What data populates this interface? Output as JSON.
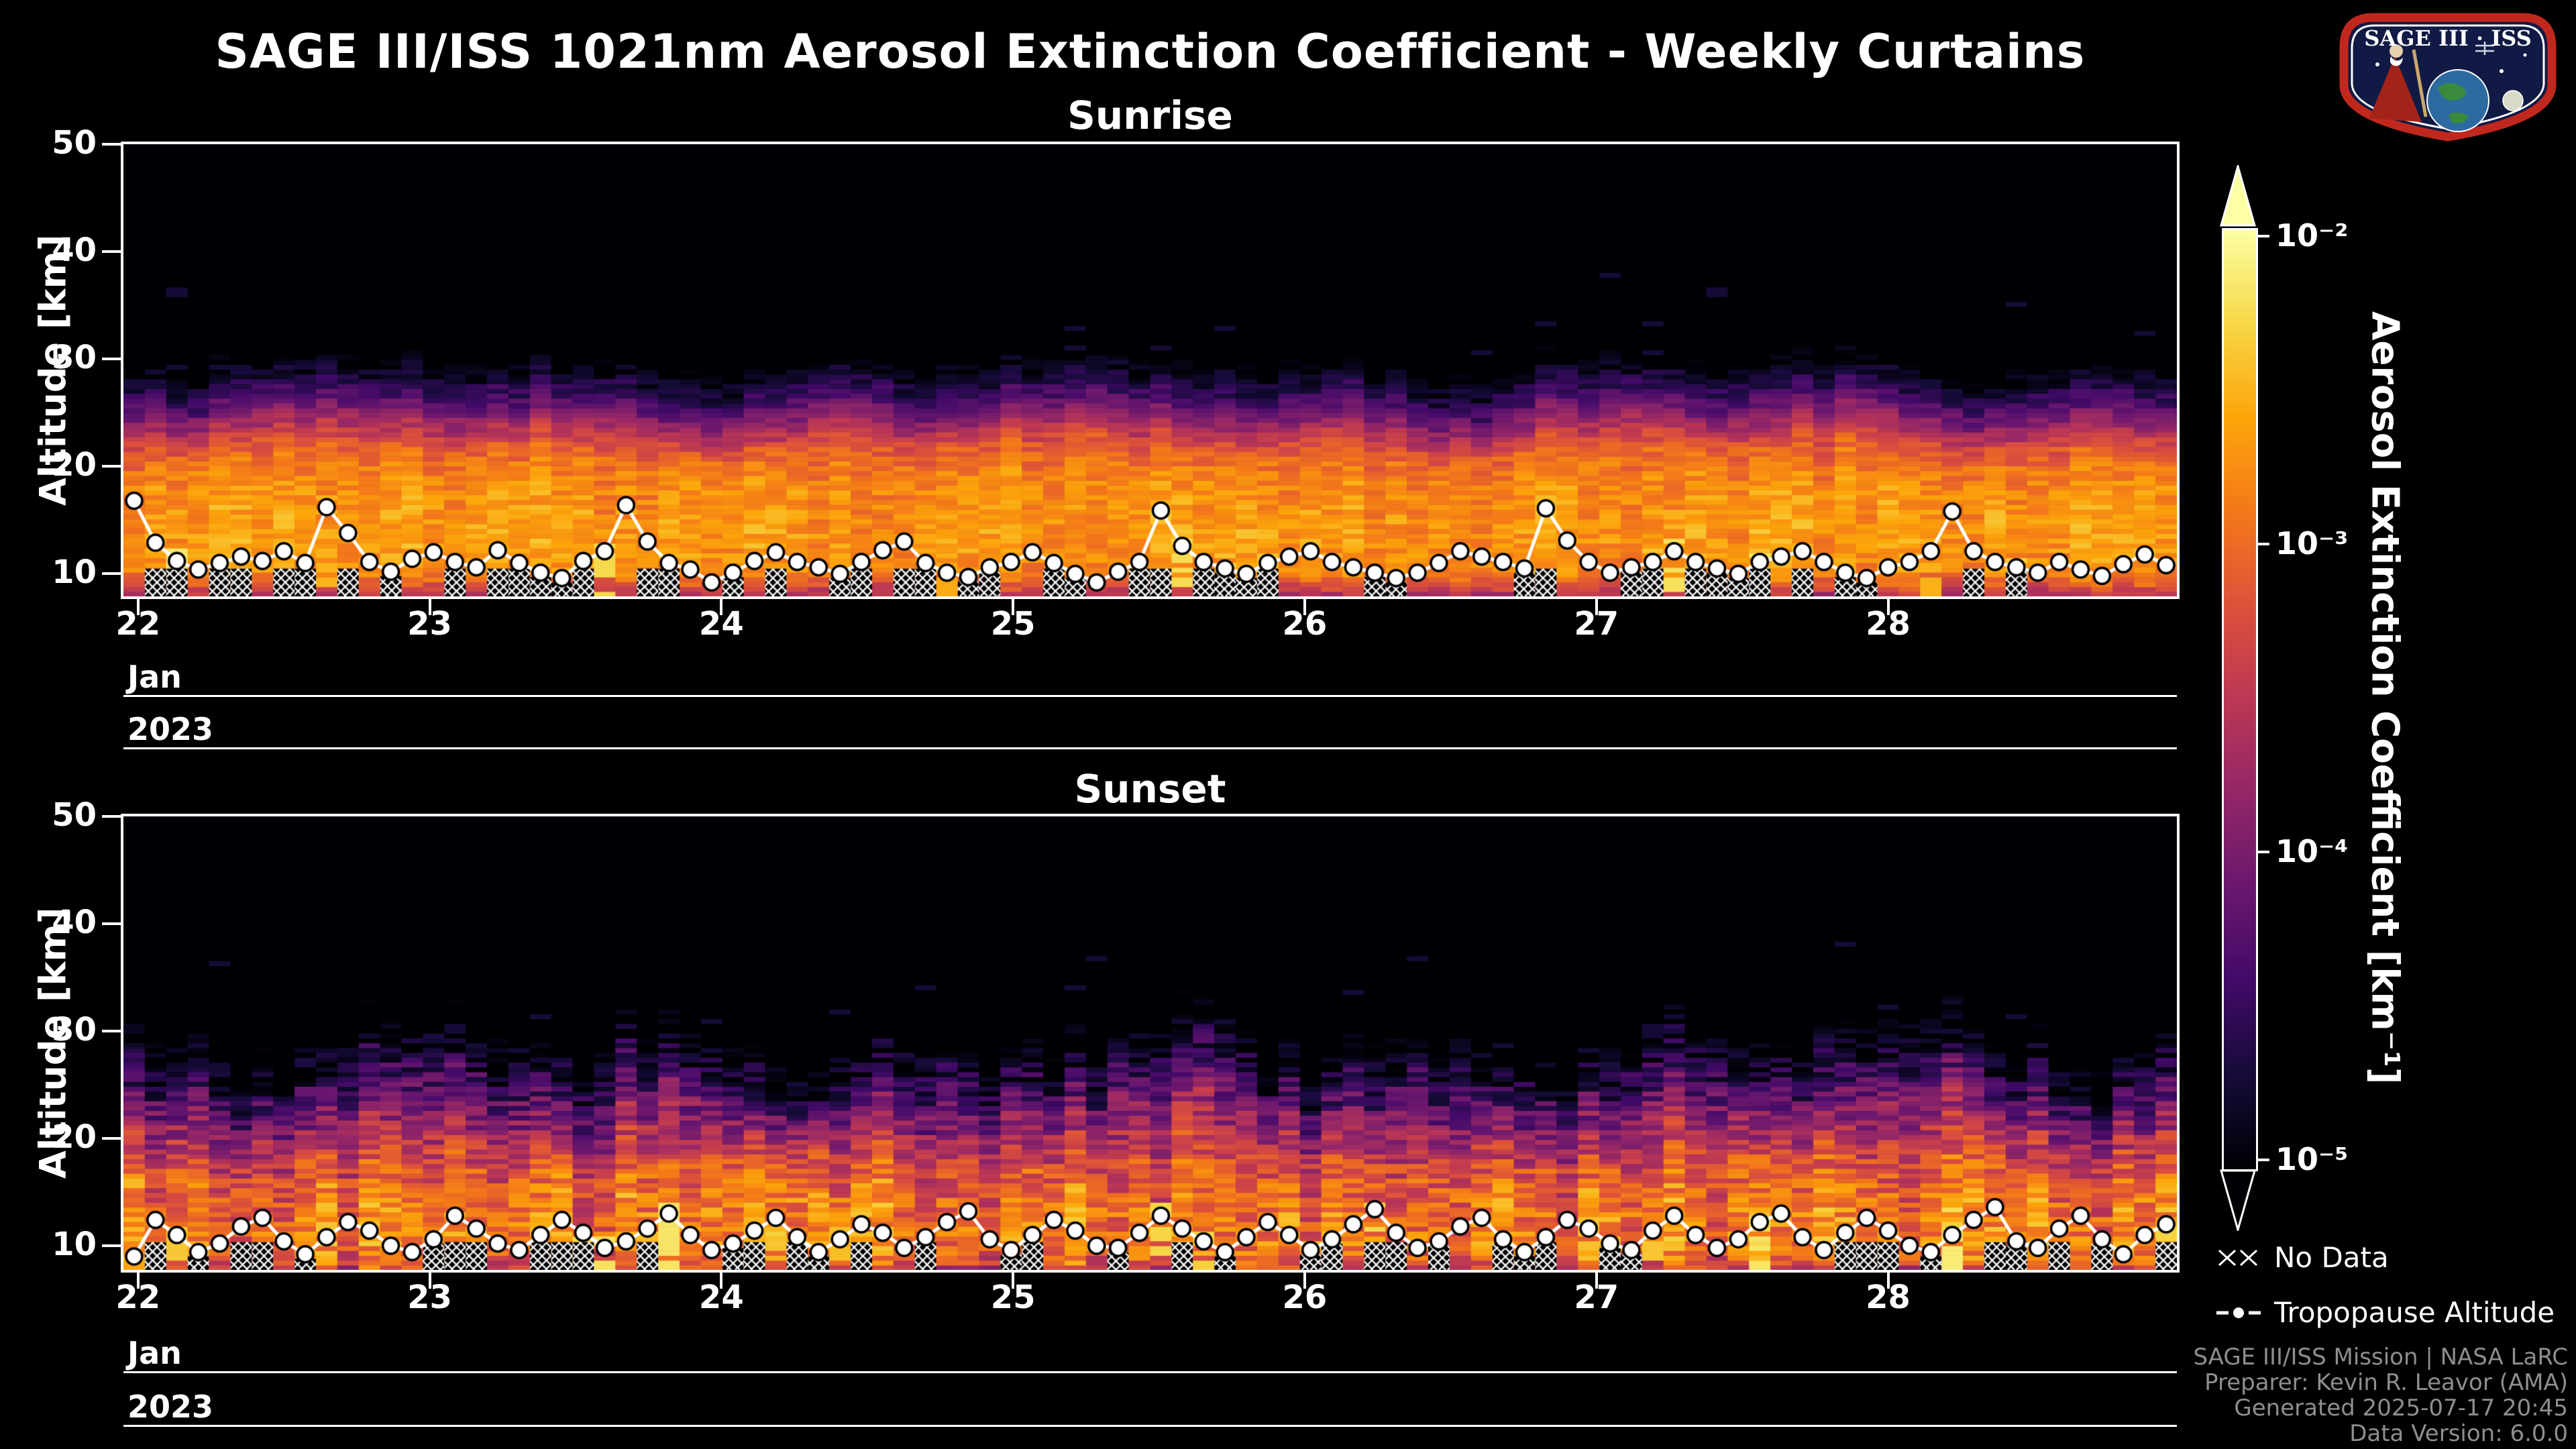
{
  "page": {
    "title": "SAGE III/ISS 1021nm Aerosol Extinction Coefficient - Weekly Curtains",
    "background": "#000000"
  },
  "logo": {
    "title": "SAGE III · ISS"
  },
  "legend": {
    "no_data": "No Data",
    "tropopause": "Tropopause Altitude"
  },
  "credits": {
    "lines": [
      "SAGE III/ISS Mission | NASA LaRC",
      "Preparer: Kevin R. Leavor (AMA)",
      "Generated 2025-07-17 20:45",
      "Data Version: 6.0.0"
    ]
  },
  "chart_data": {
    "type": "heatmap",
    "title": "SAGE III/ISS 1021nm Aerosol Extinction Coefficient - Weekly Curtains",
    "x_axis": {
      "tick_labels": [
        "22",
        "23",
        "24",
        "25",
        "26",
        "27",
        "28"
      ],
      "tick_days": [
        22,
        23,
        24,
        25,
        26,
        27,
        28
      ],
      "range_days": [
        21.95,
        28.99
      ],
      "month_label": "Jan",
      "year_label": "2023"
    },
    "y_axis": {
      "label": "Altitude [km]",
      "ticks": [
        10,
        20,
        30,
        40,
        50
      ],
      "range_km": [
        8,
        50
      ]
    },
    "color_scale": {
      "type": "log",
      "min": 1e-05,
      "max": 0.01,
      "label": "Aerosol Extinction Coefficient [km⁻¹]",
      "tick_labels": [
        "10⁻²",
        "10⁻³",
        "10⁻⁴",
        "10⁻⁵"
      ],
      "tick_exponents": [
        -2,
        -3,
        -4,
        -5
      ],
      "colormap": [
        [
          0.0,
          "#000004"
        ],
        [
          0.1,
          "#160b39"
        ],
        [
          0.2,
          "#420a68"
        ],
        [
          0.3,
          "#6a176e"
        ],
        [
          0.4,
          "#932667"
        ],
        [
          0.5,
          "#bc3754"
        ],
        [
          0.6,
          "#dd513a"
        ],
        [
          0.7,
          "#f37819"
        ],
        [
          0.8,
          "#fca50a"
        ],
        [
          0.9,
          "#f6d746"
        ],
        [
          1.0,
          "#fcffa4"
        ]
      ]
    },
    "panels": [
      {
        "title": "Sunrise",
        "profile_alt_km": [
          7.9,
          9,
          10,
          12,
          14,
          16,
          18,
          20,
          21.5,
          23,
          24.5,
          26,
          28,
          30,
          33,
          40,
          50
        ],
        "profile_log10_ext": [
          -3.5,
          -3.1,
          -2.78,
          -2.7,
          -2.7,
          -2.73,
          -2.78,
          -2.92,
          -3.15,
          -3.55,
          -3.95,
          -4.35,
          -4.8,
          -5.2,
          -5.6,
          -5.9,
          -6.0
        ],
        "tropopause_km": [
          16.8,
          12.9,
          11.2,
          10.4,
          11.0,
          11.6,
          11.2,
          12.1,
          11.0,
          16.2,
          13.8,
          11.1,
          10.2,
          11.4,
          12.0,
          11.1,
          10.6,
          12.2,
          11.0,
          10.1,
          9.6,
          11.2,
          12.1,
          16.4,
          13.0,
          11.0,
          10.4,
          9.2,
          10.1,
          11.2,
          12.0,
          11.1,
          10.6,
          10.0,
          11.1,
          12.2,
          13.0,
          11.0,
          10.1,
          9.7,
          10.6,
          11.1,
          12.0,
          11.0,
          10.0,
          9.2,
          10.2,
          11.1,
          15.9,
          12.6,
          11.1,
          10.5,
          10.0,
          11.0,
          11.6,
          12.1,
          11.1,
          10.6,
          10.1,
          9.6,
          10.1,
          11.0,
          12.1,
          11.6,
          11.1,
          10.5,
          16.1,
          13.1,
          11.1,
          10.1,
          10.6,
          11.1,
          12.1,
          11.1,
          10.5,
          10.0,
          11.1,
          11.6,
          12.1,
          11.1,
          10.1,
          9.6,
          10.6,
          11.1,
          12.1,
          15.8,
          12.1,
          11.1,
          10.6,
          10.1,
          11.1,
          10.4,
          9.8,
          10.9,
          11.8,
          10.8
        ],
        "cell_noise": 0.22,
        "col_noise": 0.12,
        "wave_amp": 1.3,
        "hot_prob": 0.12,
        "no_data_hatch_prob": 0.5,
        "seed": 3
      },
      {
        "title": "Sunset",
        "profile_alt_km": [
          7.75,
          9,
          10,
          12,
          14,
          16,
          18,
          20,
          22,
          24,
          26,
          28,
          30,
          33,
          40,
          50
        ],
        "profile_log10_ext": [
          -3.3,
          -3.0,
          -2.88,
          -2.92,
          -3.0,
          -3.15,
          -3.4,
          -3.72,
          -4.05,
          -4.4,
          -4.75,
          -5.1,
          -5.45,
          -5.8,
          -6.0,
          -6.0
        ],
        "tropopause_km": [
          9.0,
          12.4,
          11.0,
          9.4,
          10.2,
          11.8,
          12.6,
          10.4,
          9.2,
          10.8,
          12.2,
          11.4,
          10.0,
          9.4,
          10.6,
          12.8,
          11.6,
          10.2,
          9.6,
          11.0,
          12.4,
          11.2,
          9.8,
          10.4,
          11.6,
          13.0,
          11.0,
          9.6,
          10.2,
          11.4,
          12.6,
          10.8,
          9.4,
          10.6,
          12.0,
          11.2,
          9.8,
          10.8,
          12.2,
          13.2,
          10.6,
          9.6,
          11.0,
          12.4,
          11.4,
          10.0,
          9.8,
          11.2,
          12.8,
          11.6,
          10.4,
          9.4,
          10.8,
          12.2,
          11.0,
          9.6,
          10.6,
          12.0,
          13.4,
          11.2,
          9.8,
          10.4,
          11.8,
          12.6,
          10.6,
          9.4,
          10.8,
          12.4,
          11.6,
          10.2,
          9.6,
          11.4,
          12.8,
          11.0,
          9.8,
          10.6,
          12.2,
          13.0,
          10.8,
          9.6,
          11.2,
          12.6,
          11.4,
          10.0,
          9.4,
          11.0,
          12.4,
          13.6,
          10.4,
          9.8,
          11.6,
          12.8,
          10.6,
          9.2,
          11.0,
          12.0
        ],
        "cell_noise": 0.42,
        "col_noise": 0.3,
        "wave_amp": 2.6,
        "hot_prob": 0.2,
        "no_data_hatch_prob": 0.45,
        "seed": 8
      }
    ]
  }
}
